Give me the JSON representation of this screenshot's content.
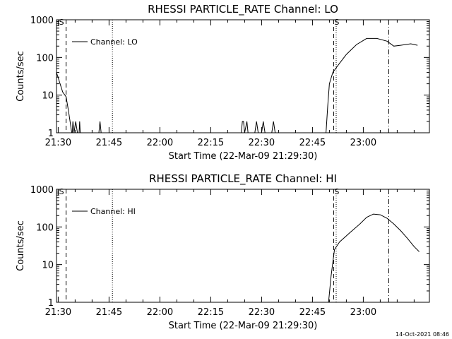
{
  "footer": {
    "stamp": "14-Oct-2021 08:46"
  },
  "chart_data": [
    {
      "type": "line",
      "title": "RHESSI PARTICLE_RATE Channel: LO",
      "xlabel": "Start Time (22-Mar-09 21:29:30)",
      "ylabel": "Counts/sec",
      "yscale": "log",
      "ylim": [
        1,
        1000
      ],
      "xlim": [
        "21:29:30",
        "23:19:30"
      ],
      "x_ticks": [
        "21:30",
        "21:45",
        "22:00",
        "22:15",
        "22:30",
        "22:45",
        "23:00"
      ],
      "y_ticks": [
        "1",
        "10",
        "100",
        "1000"
      ],
      "legend": {
        "position": "top-left",
        "entries": [
          "Channel: LO"
        ]
      },
      "markers": [
        {
          "time": "21:32:20",
          "style": "dashed"
        },
        {
          "time": "21:46:00",
          "style": "dotted"
        },
        {
          "time": "22:51:15",
          "style": "dashed"
        },
        {
          "time": "22:52:00",
          "style": "dotted"
        },
        {
          "time": "23:07:30",
          "style": "dash-dot"
        }
      ],
      "annotations": [
        "S",
        "S"
      ],
      "series": [
        {
          "name": "Channel: LO",
          "points": [
            [
              "21:29:30",
              40
            ],
            [
              "21:31:20",
              12
            ],
            [
              "21:32:20",
              9
            ],
            [
              "21:33:00",
              4
            ],
            [
              "21:33:30",
              2
            ],
            [
              "21:34:00",
              1
            ],
            [
              "21:34:10",
              1
            ],
            [
              "21:34:20",
              2
            ],
            [
              "21:34:40",
              1
            ],
            [
              "21:35:10",
              2
            ],
            [
              "21:35:40",
              1
            ],
            [
              "21:36:10",
              1
            ],
            [
              "21:36:20",
              2
            ],
            [
              "21:36:30",
              1
            ],
            [
              "21:42:00",
              1
            ],
            [
              "21:42:20",
              2
            ],
            [
              "21:42:40",
              1
            ],
            [
              "22:24:00",
              1
            ],
            [
              "22:24:20",
              2
            ],
            [
              "22:24:40",
              2
            ],
            [
              "22:25:00",
              1
            ],
            [
              "22:25:40",
              2
            ],
            [
              "22:26:00",
              1
            ],
            [
              "22:28:00",
              1
            ],
            [
              "22:28:30",
              2
            ],
            [
              "22:29:00",
              1
            ],
            [
              "22:30:00",
              1
            ],
            [
              "22:30:30",
              2
            ],
            [
              "22:31:00",
              1
            ],
            [
              "22:33:00",
              1
            ],
            [
              "22:33:30",
              2
            ],
            [
              "22:34:00",
              1
            ],
            [
              "22:49:00",
              1
            ],
            [
              "22:49:30",
              5
            ],
            [
              "22:50:00",
              20
            ],
            [
              "22:51:00",
              40
            ],
            [
              "22:53:00",
              70
            ],
            [
              "22:55:00",
              120
            ],
            [
              "22:58:00",
              220
            ],
            [
              "23:01:00",
              320
            ],
            [
              "23:04:00",
              320
            ],
            [
              "23:07:00",
              270
            ],
            [
              "23:09:00",
              200
            ],
            [
              "23:11:00",
              210
            ],
            [
              "23:14:00",
              230
            ],
            [
              "23:16:00",
              210
            ]
          ]
        }
      ]
    },
    {
      "type": "line",
      "title": "RHESSI PARTICLE_RATE Channel: HI",
      "xlabel": "Start Time (22-Mar-09 21:29:30)",
      "ylabel": "Counts/sec",
      "yscale": "log",
      "ylim": [
        1,
        1000
      ],
      "xlim": [
        "21:29:30",
        "23:19:30"
      ],
      "x_ticks": [
        "21:30",
        "21:45",
        "22:00",
        "22:15",
        "22:30",
        "22:45",
        "23:00"
      ],
      "y_ticks": [
        "1",
        "10",
        "100",
        "1000"
      ],
      "legend": {
        "position": "top-left",
        "entries": [
          "Channel: HI"
        ]
      },
      "markers": [
        {
          "time": "21:32:20",
          "style": "dashed"
        },
        {
          "time": "21:46:00",
          "style": "dotted"
        },
        {
          "time": "22:51:15",
          "style": "dashed"
        },
        {
          "time": "22:52:00",
          "style": "dotted"
        },
        {
          "time": "23:07:30",
          "style": "dash-dot"
        }
      ],
      "annotations": [
        "S",
        "S"
      ],
      "series": [
        {
          "name": "Channel: HI",
          "points": [
            [
              "22:49:45",
              1
            ],
            [
              "22:50:30",
              5
            ],
            [
              "22:51:30",
              25
            ],
            [
              "22:53:00",
              40
            ],
            [
              "22:56:00",
              70
            ],
            [
              "22:59:00",
              120
            ],
            [
              "23:01:00",
              180
            ],
            [
              "23:03:00",
              220
            ],
            [
              "23:05:00",
              210
            ],
            [
              "23:07:00",
              170
            ],
            [
              "23:09:00",
              120
            ],
            [
              "23:11:00",
              80
            ],
            [
              "23:13:00",
              50
            ],
            [
              "23:15:00",
              30
            ],
            [
              "23:16:30",
              22
            ]
          ]
        }
      ]
    }
  ]
}
